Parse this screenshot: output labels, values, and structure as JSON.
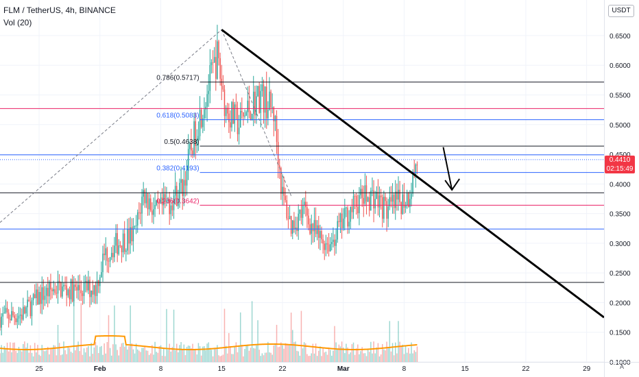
{
  "header": {
    "symbol": "FLM / TetherUS, 4h, BINANCE",
    "volume_label": "Vol (20)"
  },
  "controls": {
    "currency": "USDT",
    "auto": "A"
  },
  "price_badge": {
    "price": "0.4410",
    "countdown": "02:15:49",
    "color": "#f23645"
  },
  "colors": {
    "up": "#26a69a",
    "down": "#ef5350",
    "vol_ma": "#ff9800",
    "fib_blue": "#2962ff",
    "fib_pink": "#e91e63"
  },
  "chart_data": {
    "type": "candlestick",
    "ylim": [
      0.1,
      0.71
    ],
    "y_ticks": [
      "0.1000",
      "0.1500",
      "0.2000",
      "0.2500",
      "0.3000",
      "0.3500",
      "0.4000",
      "0.4500",
      "0.5000",
      "0.5500",
      "0.6000",
      "0.6500"
    ],
    "x_ticks": [
      {
        "label": "25",
        "day": 25
      },
      {
        "label": "Feb",
        "day": 32
      },
      {
        "label": "8",
        "day": 39
      },
      {
        "label": "15",
        "day": 46
      },
      {
        "label": "22",
        "day": 53
      },
      {
        "label": "Mar",
        "day": 60
      },
      {
        "label": "8",
        "day": 67
      },
      {
        "label": "15",
        "day": 74
      },
      {
        "label": "22",
        "day": 81
      },
      {
        "label": "29",
        "day": 88
      }
    ],
    "x_range_days": [
      20.5,
      90
    ],
    "candles_keypoints": [
      [
        20.5,
        0.175
      ],
      [
        23,
        0.18
      ],
      [
        25,
        0.21
      ],
      [
        27,
        0.225
      ],
      [
        29,
        0.22
      ],
      [
        31.5,
        0.225
      ],
      [
        32.5,
        0.28
      ],
      [
        34,
        0.3
      ],
      [
        36,
        0.315
      ],
      [
        37,
        0.385
      ],
      [
        38.5,
        0.35
      ],
      [
        40,
        0.37
      ],
      [
        41.5,
        0.395
      ],
      [
        43,
        0.49
      ],
      [
        44.5,
        0.565
      ],
      [
        45.5,
        0.615
      ],
      [
        46.5,
        0.525
      ],
      [
        48,
        0.5
      ],
      [
        49.5,
        0.535
      ],
      [
        50.5,
        0.55
      ],
      [
        52,
        0.52
      ],
      [
        53,
        0.38
      ],
      [
        54,
        0.33
      ],
      [
        55.5,
        0.355
      ],
      [
        57,
        0.31
      ],
      [
        58.5,
        0.3
      ],
      [
        60.5,
        0.35
      ],
      [
        62,
        0.375
      ],
      [
        63.5,
        0.38
      ],
      [
        65,
        0.355
      ],
      [
        66.5,
        0.37
      ],
      [
        67.5,
        0.38
      ],
      [
        68.5,
        0.44
      ]
    ],
    "volume_ma_level": 0.3,
    "fibonacci": [
      {
        "level": "0.786",
        "price": 0.5717,
        "label": "0.786(0.5717)",
        "color": "#131722"
      },
      {
        "level": "0.618",
        "price": 0.5083,
        "label": "0.618(0.5083)",
        "color": "#2962ff"
      },
      {
        "level": "0.5",
        "price": 0.4638,
        "label": "0.5(0.4638)",
        "color": "#131722"
      },
      {
        "level": "0.382",
        "price": 0.4193,
        "label": "0.382(0.4193)",
        "color": "#2962ff"
      },
      {
        "level": "0.236",
        "price": 0.3642,
        "label": "0.236(0.3642)",
        "color": "#e91e63"
      }
    ],
    "horizontal_lines": [
      {
        "price": 0.527,
        "color": "#e91e63"
      },
      {
        "price": 0.449,
        "color": "#2962ff"
      },
      {
        "price": 0.385,
        "color": "#131722"
      },
      {
        "price": 0.324,
        "color": "#2962ff"
      },
      {
        "price": 0.234,
        "color": "#131722"
      }
    ],
    "trendline": {
      "from": [
        46,
        0.66
      ],
      "to": [
        90,
        0.175
      ]
    },
    "projection_arrow": {
      "from": [
        71.5,
        0.462
      ],
      "to": [
        72.5,
        0.39
      ]
    },
    "current_price": 0.441
  }
}
